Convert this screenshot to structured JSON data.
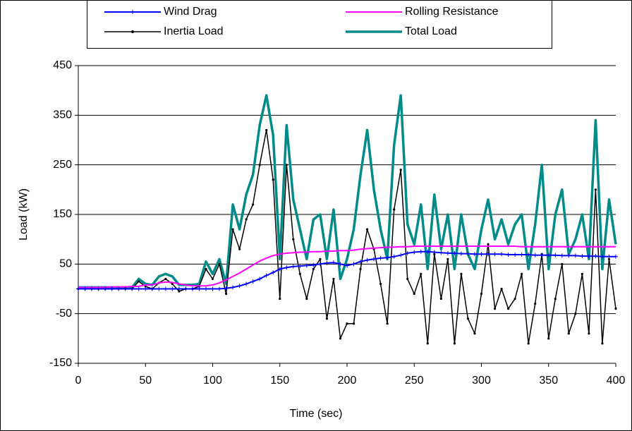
{
  "chart_data": {
    "type": "line",
    "x_label": "Time (sec)",
    "y_label": "Load (kW)",
    "xlim": [
      0,
      400
    ],
    "xticks": [
      0,
      50,
      100,
      150,
      200,
      250,
      300,
      350,
      400
    ],
    "ylim": [
      -150,
      450
    ],
    "yticks": [
      -150,
      -50,
      50,
      150,
      250,
      350,
      450
    ],
    "grid": true,
    "x": [
      0,
      5,
      10,
      15,
      20,
      25,
      30,
      35,
      40,
      45,
      50,
      55,
      60,
      65,
      70,
      75,
      80,
      85,
      90,
      95,
      100,
      105,
      110,
      115,
      120,
      125,
      130,
      135,
      140,
      145,
      150,
      155,
      160,
      165,
      170,
      175,
      180,
      185,
      190,
      195,
      200,
      205,
      210,
      215,
      220,
      225,
      230,
      235,
      240,
      245,
      250,
      255,
      260,
      265,
      270,
      275,
      280,
      285,
      290,
      295,
      300,
      305,
      310,
      315,
      320,
      325,
      330,
      335,
      340,
      345,
      350,
      355,
      360,
      365,
      370,
      375,
      380,
      385,
      390,
      395,
      400
    ],
    "series": [
      {
        "name": "Wind Drag",
        "color": "#0000ff",
        "line_width": 2,
        "marker": "plus",
        "values": [
          0,
          0,
          0,
          0,
          0,
          0,
          0,
          0,
          0,
          0,
          0,
          0,
          0,
          0,
          0,
          0,
          0,
          0,
          0,
          0,
          0,
          0,
          1,
          3,
          6,
          10,
          15,
          20,
          27,
          33,
          40,
          43,
          45,
          46,
          47,
          48,
          50,
          52,
          53,
          50,
          47,
          50,
          55,
          58,
          60,
          62,
          63,
          65,
          68,
          72,
          74,
          75,
          75,
          74,
          73,
          72,
          72,
          71,
          71,
          70,
          70,
          70,
          70,
          70,
          69,
          69,
          69,
          69,
          68,
          68,
          68,
          68,
          67,
          67,
          67,
          66,
          66,
          66,
          65,
          65,
          65
        ]
      },
      {
        "name": "Rolling Resistance",
        "color": "#ff00ff",
        "line_width": 2,
        "marker": "none",
        "values": [
          3,
          3,
          3,
          3,
          3,
          4,
          4,
          4,
          5,
          5,
          8,
          8,
          12,
          14,
          13,
          10,
          8,
          6,
          6,
          6,
          8,
          12,
          18,
          25,
          32,
          40,
          48,
          56,
          62,
          67,
          70,
          72,
          73,
          74,
          74,
          75,
          75,
          76,
          76,
          77,
          77,
          78,
          80,
          81,
          82,
          83,
          84,
          84,
          85,
          85,
          86,
          86,
          86,
          86,
          86,
          86,
          86,
          86,
          86,
          86,
          86,
          86,
          86,
          86,
          86,
          86,
          85,
          85,
          85,
          85,
          85,
          85,
          85,
          85,
          85,
          85,
          85,
          85,
          85,
          85,
          85
        ]
      },
      {
        "name": "Inertia Load",
        "color": "#000000",
        "line_width": 1.5,
        "marker": "dot",
        "values": [
          0,
          0,
          0,
          0,
          0,
          0,
          0,
          0,
          0,
          15,
          5,
          0,
          12,
          20,
          10,
          -5,
          0,
          0,
          5,
          40,
          20,
          50,
          -10,
          120,
          80,
          140,
          170,
          250,
          320,
          220,
          -20,
          250,
          100,
          30,
          -20,
          40,
          60,
          -60,
          20,
          -100,
          -70,
          -70,
          40,
          120,
          80,
          10,
          -70,
          160,
          240,
          20,
          -10,
          30,
          -110,
          70,
          -20,
          60,
          -110,
          30,
          -60,
          -90,
          -10,
          90,
          -40,
          0,
          -40,
          -20,
          30,
          -110,
          -30,
          70,
          -100,
          -20,
          50,
          -90,
          -50,
          30,
          -90,
          200,
          -110,
          60,
          -40
        ]
      },
      {
        "name": "Total Load",
        "color": "#008b8b",
        "line_width": 3.5,
        "marker": "none",
        "values": [
          3,
          3,
          3,
          3,
          3,
          3,
          3,
          3,
          3,
          20,
          10,
          8,
          25,
          30,
          25,
          8,
          8,
          8,
          10,
          55,
          30,
          60,
          10,
          170,
          120,
          190,
          230,
          330,
          390,
          310,
          60,
          330,
          180,
          120,
          60,
          140,
          150,
          60,
          160,
          20,
          60,
          120,
          230,
          320,
          200,
          120,
          60,
          290,
          390,
          130,
          90,
          170,
          40,
          190,
          80,
          150,
          40,
          150,
          70,
          40,
          120,
          180,
          100,
          140,
          90,
          130,
          150,
          40,
          130,
          250,
          40,
          150,
          200,
          70,
          100,
          150,
          60,
          340,
          40,
          180,
          90
        ]
      }
    ]
  }
}
